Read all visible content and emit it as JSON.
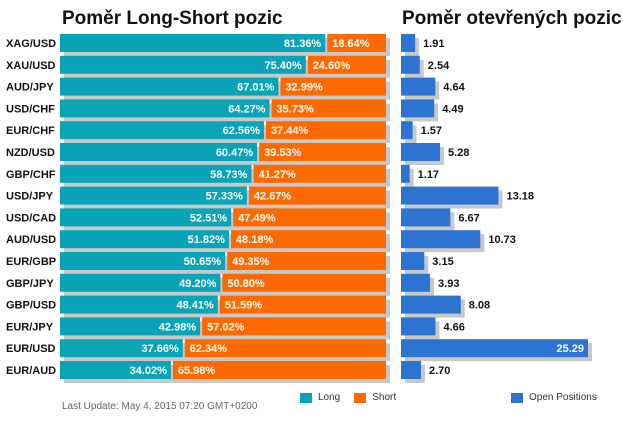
{
  "titles": {
    "left": "Poměr Long-Short pozic",
    "right": "Poměr otevřených pozic"
  },
  "footer": {
    "last_update": "Last Update: May 4, 2015 07:20 GMT+0200"
  },
  "legend": {
    "long": "Long",
    "short": "Short",
    "open_positions": "Open Positions"
  },
  "colors": {
    "long": "#0aa4b8",
    "short": "#ff6a00",
    "open_positions": "#2c73d2",
    "shadow": "#c8c8c8"
  },
  "chart_data": [
    {
      "type": "bar",
      "stacked": true,
      "orientation": "horizontal",
      "title": "Poměr Long-Short pozic",
      "categories": [
        "XAG/USD",
        "XAU/USD",
        "AUD/JPY",
        "USD/CHF",
        "EUR/CHF",
        "NZD/USD",
        "GBP/CHF",
        "USD/JPY",
        "USD/CAD",
        "AUD/USD",
        "EUR/GBP",
        "GBP/JPY",
        "GBP/USD",
        "EUR/JPY",
        "EUR/USD",
        "EUR/AUD"
      ],
      "series": [
        {
          "name": "Long",
          "values": [
            81.36,
            75.4,
            67.01,
            64.27,
            62.56,
            60.47,
            58.73,
            57.33,
            52.51,
            51.82,
            50.65,
            49.2,
            48.41,
            42.98,
            37.66,
            34.02
          ]
        },
        {
          "name": "Short",
          "values": [
            18.64,
            24.6,
            32.99,
            35.73,
            37.44,
            39.53,
            41.27,
            42.67,
            47.49,
            48.18,
            49.35,
            50.8,
            51.59,
            57.02,
            62.34,
            65.98
          ]
        }
      ],
      "value_labels": {
        "long": [
          "81.36%",
          "75.40%",
          "67.01%",
          "64.27%",
          "62.56%",
          "60.47%",
          "58.73%",
          "57.33%",
          "52.51%",
          "51.82%",
          "50.65%",
          "49.20%",
          "48.41%",
          "42.98%",
          "37.66%",
          "34.02%"
        ],
        "short": [
          "18.64%",
          "24.60%",
          "32.99%",
          "35.73%",
          "37.44%",
          "39.53%",
          "41.27%",
          "42.67%",
          "47.49%",
          "48.18%",
          "49.35%",
          "50.80%",
          "51.59%",
          "57.02%",
          "62.34%",
          "65.98%"
        ]
      },
      "xlim": [
        0,
        100
      ],
      "legend_position": "bottom-right"
    },
    {
      "type": "bar",
      "orientation": "horizontal",
      "title": "Poměr otevřených pozic",
      "categories": [
        "XAG/USD",
        "XAU/USD",
        "AUD/JPY",
        "USD/CHF",
        "EUR/CHF",
        "NZD/USD",
        "GBP/CHF",
        "USD/JPY",
        "USD/CAD",
        "AUD/USD",
        "EUR/GBP",
        "GBP/JPY",
        "GBP/USD",
        "EUR/JPY",
        "EUR/USD",
        "EUR/AUD"
      ],
      "series": [
        {
          "name": "Open Positions",
          "values": [
            1.91,
            2.54,
            4.64,
            4.49,
            1.57,
            5.28,
            1.17,
            13.18,
            6.67,
            10.73,
            3.15,
            3.93,
            8.08,
            4.66,
            25.29,
            2.7
          ]
        }
      ],
      "value_labels": [
        "1.91",
        "2.54",
        "4.64",
        "4.49",
        "1.57",
        "5.28",
        "1.17",
        "13.18",
        "6.67",
        "10.73",
        "3.15",
        "3.93",
        "8.08",
        "4.66",
        "25.29",
        "2.70"
      ],
      "xlim": [
        0,
        25.29
      ],
      "legend_position": "bottom"
    }
  ]
}
